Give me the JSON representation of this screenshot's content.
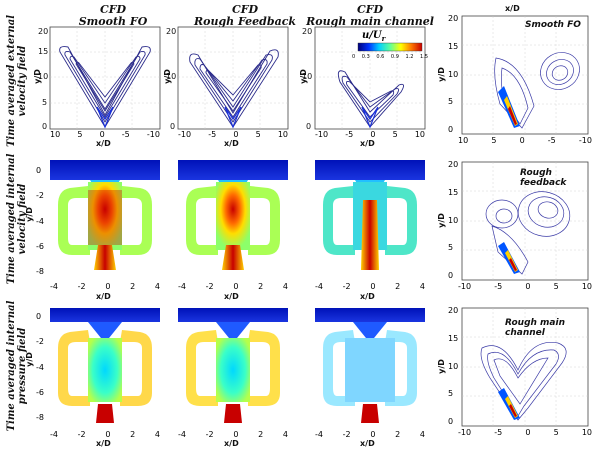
{
  "columns": {
    "col1": {
      "prefix": "CFD",
      "name": "Smooth FO"
    },
    "col2": {
      "prefix": "CFD",
      "name": "Rough Feedback"
    },
    "col3": {
      "prefix": "CFD",
      "name": "Rough main channel"
    },
    "col4": {
      "xlabel": "x/D"
    }
  },
  "rows": {
    "row1": "Time averaged external velocity field",
    "row2": "Time averaged internal velocity field",
    "row3": "Time averaged internal pressure field"
  },
  "colorbar": {
    "label": "u/U",
    "subscript": "r",
    "ticks": [
      "0",
      "0.3",
      "0.6",
      "0.9",
      "1.2",
      "1.5"
    ],
    "colors": [
      "#00007a",
      "#0033ff",
      "#00d0ff",
      "#5cff9c",
      "#ffff00",
      "#ff7a00",
      "#c80000"
    ]
  },
  "exp_panels": {
    "p1": "Smooth FO",
    "p2": "Rough feedback",
    "p3": "Rough main channel"
  },
  "axes": {
    "xd": "x/D",
    "yd": "y/D",
    "row1_x_ticks": [
      "10",
      "5",
      "0",
      "-5",
      "-10"
    ],
    "row1_y_ticks": [
      "0",
      "5",
      "10",
      "15",
      "20"
    ],
    "row23_x_ticks": [
      "-4",
      "-2",
      "0",
      "2",
      "4"
    ],
    "row23_y_ticks": [
      "0",
      "-2",
      "-4",
      "-6",
      "-8"
    ],
    "col4_r1_x_ticks": [
      "10",
      "5",
      "0",
      "-5",
      "-10"
    ],
    "col4_y_ticks": [
      "0",
      "5",
      "10",
      "15",
      "20"
    ],
    "col4_r23_x_ticks": [
      "-10",
      "-5",
      "0",
      "5",
      "10"
    ]
  }
}
